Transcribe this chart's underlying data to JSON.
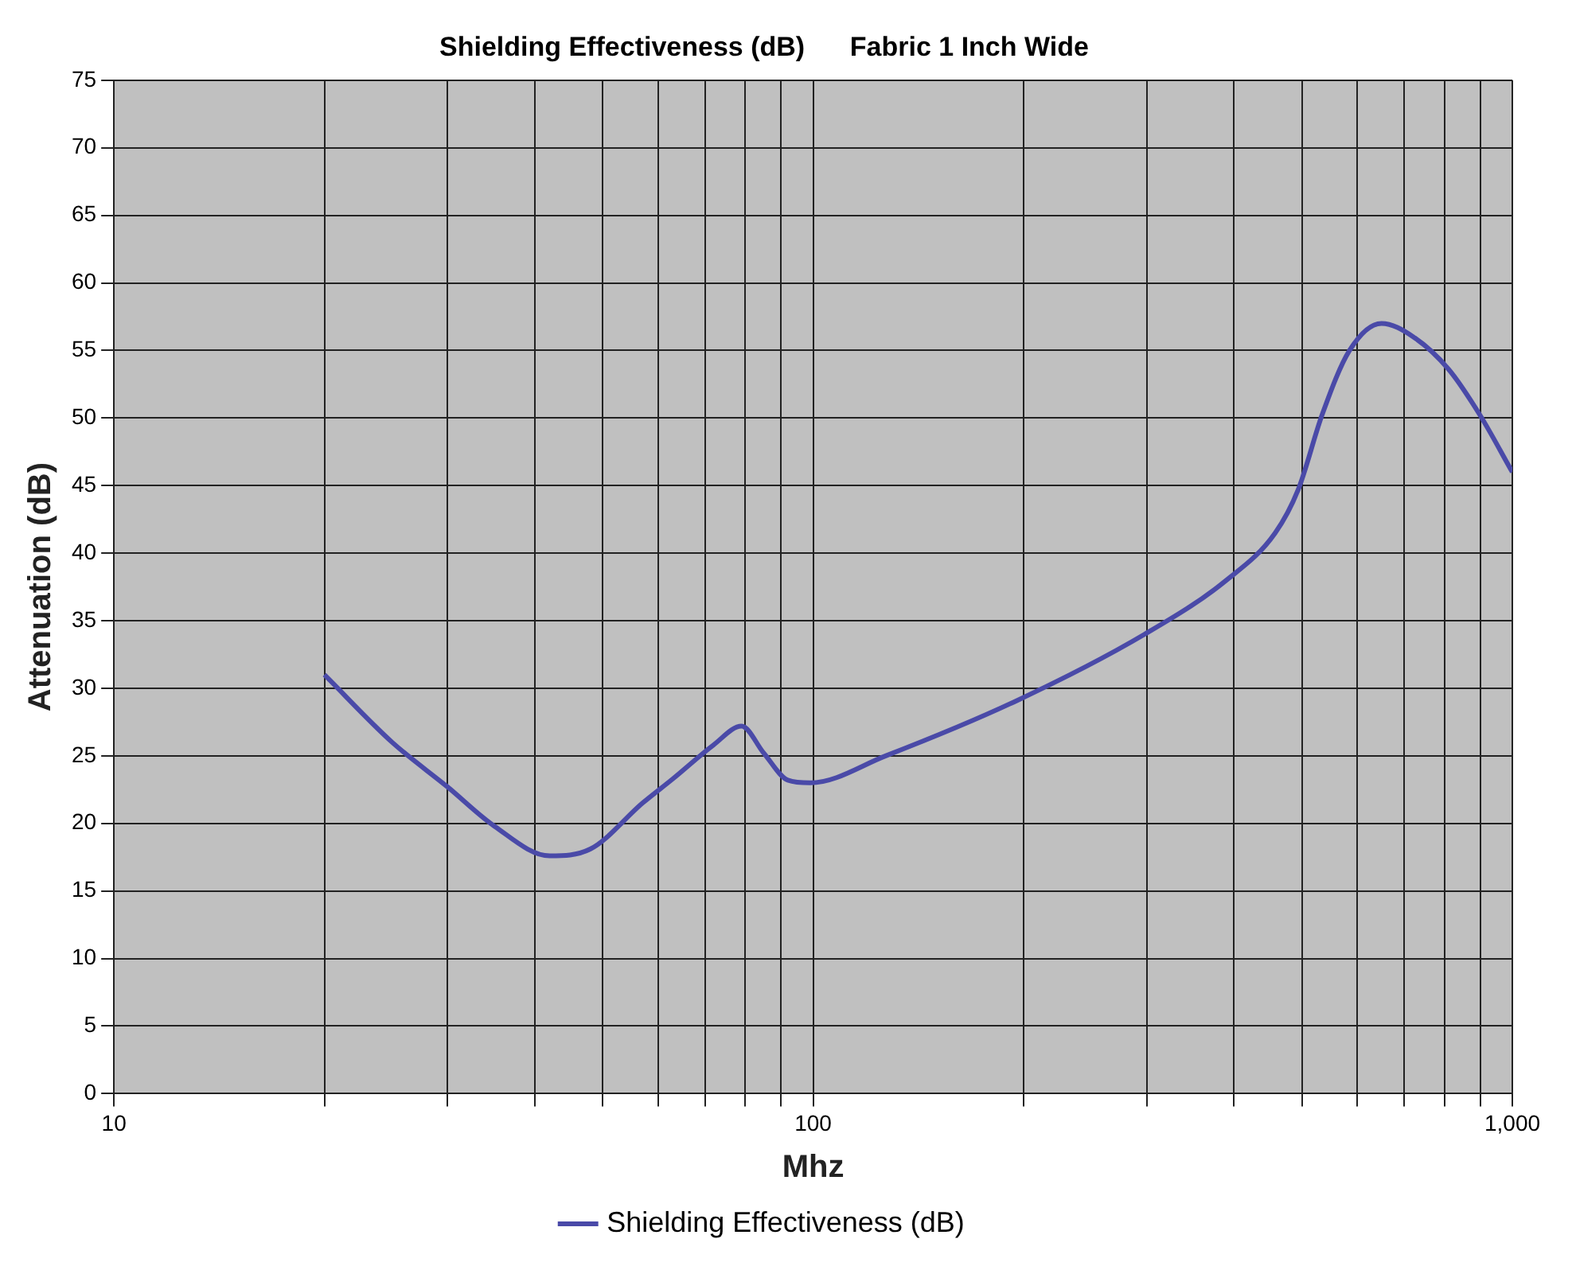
{
  "chart_data": {
    "type": "line",
    "title": "Shielding Effectiveness (dB)      Fabric 1 Inch Wide",
    "xlabel": "Mhz",
    "ylabel": "Attenuation (dB)",
    "log": "x",
    "grid": true,
    "legend": "bottom",
    "marker": "none",
    "line_style": "solid",
    "xlim": [
      10,
      1000
    ],
    "ylim": [
      0,
      75
    ],
    "xticks": [
      10,
      {
        "value": 20,
        "label": null
      },
      {
        "value": 30,
        "label": null
      },
      {
        "value": 40,
        "label": null
      },
      {
        "value": 50,
        "label": null
      },
      {
        "value": 60,
        "label": null
      },
      {
        "value": 70,
        "label": null
      },
      {
        "value": 80,
        "label": null
      },
      {
        "value": 90,
        "label": null
      },
      100,
      {
        "value": 200,
        "label": null
      },
      {
        "value": 300,
        "label": null
      },
      {
        "value": 400,
        "label": null
      },
      {
        "value": 500,
        "label": null
      },
      {
        "value": 600,
        "label": null
      },
      {
        "value": 700,
        "label": null
      },
      {
        "value": 800,
        "label": null
      },
      {
        "value": 900,
        "label": null
      },
      {
        "value": 1000,
        "label": "1,000"
      }
    ],
    "yticks": [
      0,
      5,
      10,
      15,
      20,
      25,
      30,
      35,
      40,
      45,
      50,
      55,
      60,
      65,
      70,
      75
    ],
    "x": [
      20,
      25,
      30,
      35,
      42,
      48,
      57,
      63,
      72,
      79,
      85,
      92,
      99,
      127,
      194,
      298,
      390,
      458,
      494,
      535,
      585,
      650,
      722,
      811,
      897,
      1000
    ],
    "series": [
      {
        "name": "Shielding Effectiveness (dB)",
        "color": "#4a4aa8",
        "values": [
          31,
          26,
          22.7,
          19.8,
          17.6,
          18.1,
          21.5,
          23.3,
          25.8,
          27.2,
          25.2,
          23.2,
          23,
          25,
          29,
          34,
          38,
          41.5,
          44.7,
          50.3,
          55,
          57,
          56,
          53.6,
          50.3,
          46
        ]
      }
    ]
  }
}
